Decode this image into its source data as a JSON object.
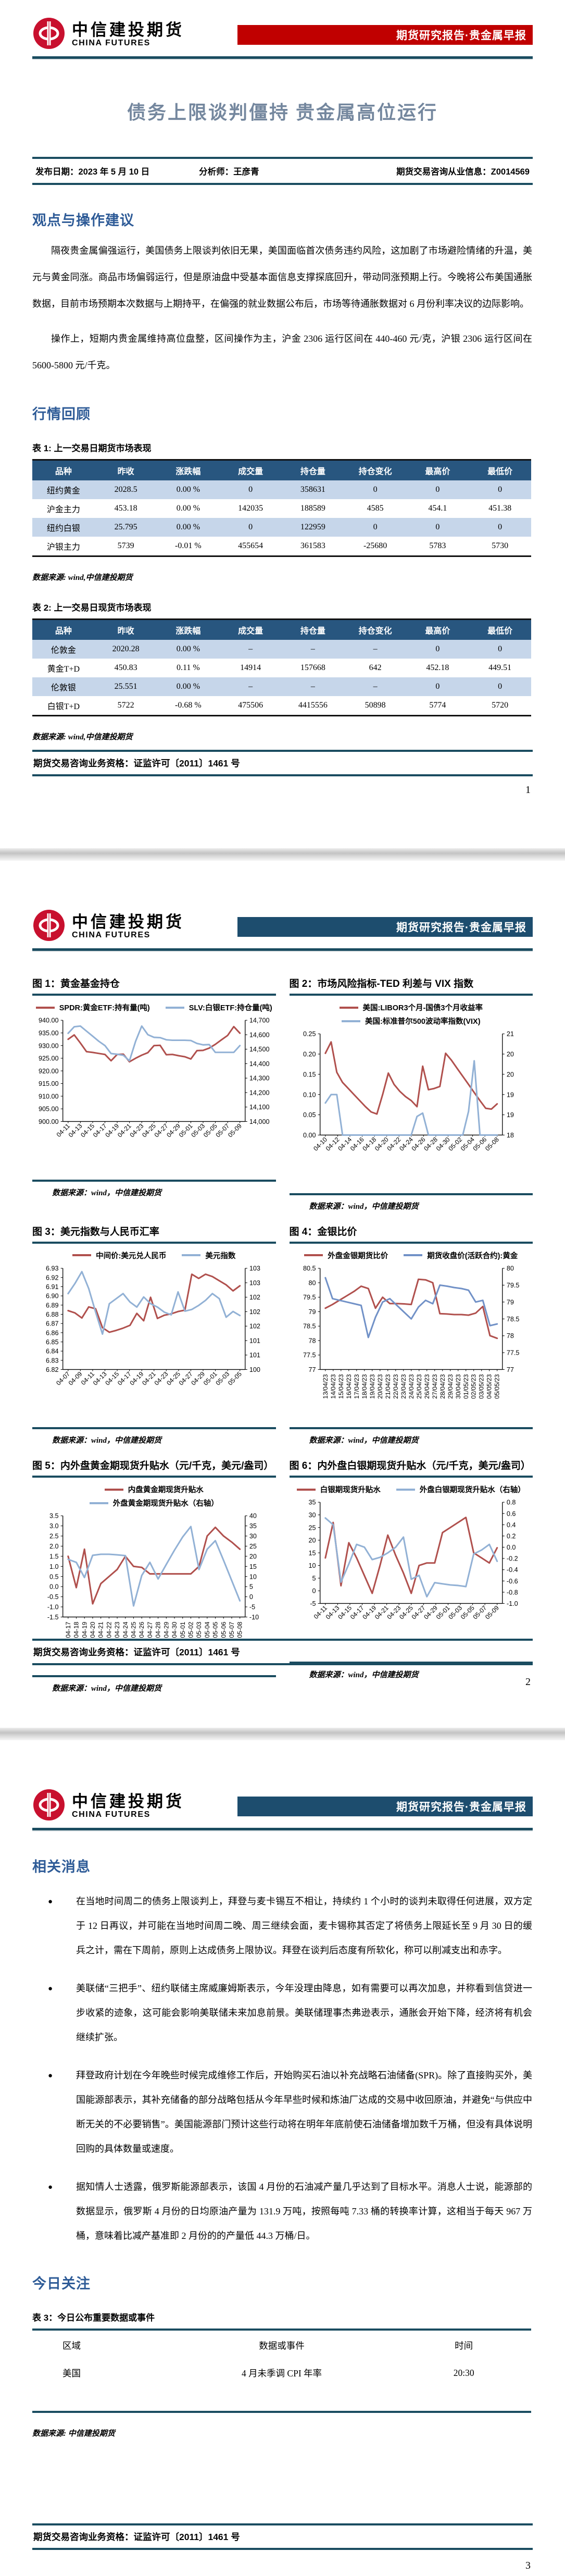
{
  "theme": {
    "teal": "#1a4c60",
    "red_banner": "#c00000",
    "navy_banner": "#1d4d6e",
    "table_header": "#28567f",
    "row_alt": "#c6d6ea",
    "heading": "#2e5b97",
    "title_color": "#74879e",
    "line_red": "#b0504d",
    "line_blue": "#92b1d5"
  },
  "header": {
    "logo_cn": "中信建投期货",
    "logo_en": "CHINA FUTURES",
    "banner": "期货研究报告·贵金属早报"
  },
  "cover": {
    "title": "债务上限谈判僵持 贵金属高位运行",
    "publish": "发布日期：2023 年 5 月 10 日",
    "analyst": "分析师：王彦青",
    "license_info": "期货交易咨询从业信息：Z0014569"
  },
  "sections": {
    "viewpoint": "观点与操作建议",
    "review": "行情回顾",
    "news": "相关消息",
    "today": "今日关注"
  },
  "viewpoint": {
    "para1": "隔夜贵金属偏强运行，美国债务上限谈判依旧无果，美国面临首次债务违约风险，这加剧了市场避险情绪的升温，美元与黄金同涨。商品市场偏弱运行，但是原油盘中受基本面信息支撑探底回升，带动同涨预期上行。今晚将公布美国通胀数据，目前市场预期本次数据与上期持平，在偏强的就业数据公布后，市场等待通胀数据对 6 月份利率决议的边际影响。",
    "para2": "操作上，短期内贵金属维持高位盘整，区间操作为主，沪金 2306 运行区间在 440-460 元/克，沪银 2306 运行区间在 5600-5800 元/千克。"
  },
  "tables": [
    {
      "caption": "表 1: 上一交易日期货市场表现",
      "headers": [
        "品种",
        "昨收",
        "涨跌幅",
        "成交量",
        "持仓量",
        "持仓变化",
        "最高价",
        "最低价"
      ],
      "rows": [
        [
          "纽约黄金",
          "2028.5",
          "0.00 %",
          "0",
          "358631",
          "0",
          "0",
          "0"
        ],
        [
          "沪金主力",
          "453.18",
          "0.00 %",
          "142035",
          "188589",
          "4585",
          "454.1",
          "451.38"
        ],
        [
          "纽约白银",
          "25.795",
          "0.00 %",
          "0",
          "122959",
          "0",
          "0",
          "0"
        ],
        [
          "沪银主力",
          "5739",
          "-0.01 %",
          "455654",
          "361583",
          "-25680",
          "5783",
          "5730"
        ]
      ],
      "source": "数据来源: wind,中信建投期货"
    },
    {
      "caption": "表 2: 上一交易日现货市场表现",
      "headers": [
        "品种",
        "昨收",
        "涨跌幅",
        "成交量",
        "持仓量",
        "持仓变化",
        "最高价",
        "最低价"
      ],
      "rows": [
        [
          "伦敦金",
          "2020.28",
          "0.00 %",
          "–",
          "–",
          "–",
          "0",
          "0"
        ],
        [
          "黄金T+D",
          "450.83",
          "0.11 %",
          "14914",
          "157668",
          "642",
          "452.18",
          "449.51"
        ],
        [
          "伦敦银",
          "25.551",
          "0.00 %",
          "–",
          "–",
          "–",
          "0",
          "0"
        ],
        [
          "白银T+D",
          "5722",
          "-0.68 %",
          "475506",
          "4415556",
          "50898",
          "5774",
          "5720"
        ]
      ],
      "source": "数据来源: wind,中信建投期货"
    },
    {
      "caption": "表 3：今日公布重要数据或事件",
      "headers": [
        "区域",
        "数据或事件",
        "时间"
      ],
      "rows": [
        [
          "美国",
          "4 月未季调 CPI 年率",
          "20:30"
        ]
      ],
      "source": "数据来源: 中信建投期货"
    }
  ],
  "news": {
    "bullets": [
      "在当地时间周二的债务上限谈判上，拜登与麦卡锡互不相让，持续约 1 个小时的谈判未取得任何进展，双方定于 12 日再议，并可能在当地时间周二晚、周三继续会面，麦卡锡称其否定了将债务上限延长至 9 月 30 日的缓兵之计，需在下周前，原则上达成债务上限协议。拜登在谈判后态度有所软化，称可以削减支出和赤字。",
      "美联储“三把手”、纽约联储主席威廉姆斯表示，今年没理由降息，如有需要可以再次加息，并称看到信贷进一步收紧的迹象，这可能会影响美联储未来加息前景。美联储理事杰弗逊表示，通胀会开始下降，经济将有机会继续扩张。",
      "拜登政府计划在今年晚些时候完成维修工作后，开始购买石油以补充战略石油储备(SPR)。除了直接购买外，美国能源部表示，其补充储备的部分战略包括从今年早些时候和炼油厂达成的交易中收回原油，并避免“与供应中断无关的不必要销售”。美国能源部门预计这些行动将在明年年底前使石油储备增加数千万桶，但没有具体说明回购的具体数量或速度。",
      "据知情人士透露，俄罗斯能源部表示，该国 4 月份的石油减产量几乎达到了目标水平。消息人士说，能源部的数据显示，俄罗斯 4 月份的日均原油产量为 131.9 万吨，按照每吨 7.33 桶的转换率计算，这相当于每天 967 万桶，意味着比减产基准即 2 月份的的产量低 44.3 万桶/日。"
    ]
  },
  "footer": {
    "license": "期货交易咨询业务资格：证监许可〔2011〕1461 号",
    "pages": [
      "1",
      "2",
      "3"
    ]
  },
  "chart_source": "数据来源：wind，中信建投期货",
  "chart_data": [
    {
      "type": "line",
      "title": "图 1：黄金基金持仓",
      "legend_stacked": false,
      "legend": [
        {
          "label": "SPDR:黄金ETF:持有量(吨)",
          "color": "#b0504d"
        },
        {
          "label": "SLV:白银ETF:持仓量(吨)",
          "color": "#92b1d5"
        }
      ],
      "left_axis": {
        "ticks": [
          "940.00",
          "935.00",
          "930.00",
          "925.00",
          "920.00",
          "915.00",
          "910.00",
          "905.00",
          "900.00"
        ],
        "min": 900,
        "max": 940
      },
      "right_axis": {
        "ticks": [
          "14,700",
          "14,600",
          "14,500",
          "14,400",
          "14,300",
          "14,200",
          "14,100",
          "14,000"
        ],
        "min": 14000,
        "max": 14700
      },
      "x_labels": [
        "04-11",
        "04-13",
        "04-15",
        "04-17",
        "04-19",
        "04-21",
        "04-23",
        "04-25",
        "04-27",
        "04-29",
        "05-01",
        "05-03",
        "05-05",
        "05-07",
        "05-09"
      ],
      "x_rotate": -45,
      "series": [
        {
          "name": "SPDR:黄金ETF:持有量(吨)",
          "axis": "left",
          "color": "#b0504d",
          "values": [
            932.5,
            934.2,
            931.0,
            927.6,
            927.3,
            926.9,
            926.5,
            924.0,
            926.5,
            926.6,
            923.6,
            925.0,
            926.2,
            927.2,
            930.0,
            930.1,
            926.4,
            926.5,
            926.0,
            925.6,
            924.7,
            928.0,
            928.1,
            929.0,
            930.5,
            932.3,
            934.0,
            937.5,
            934.9
          ]
        },
        {
          "name": "SLV:白银ETF:持仓量(吨)",
          "axis": "right",
          "color": "#92b1d5",
          "values": [
            14610,
            14655,
            14660,
            14625,
            14590,
            14555,
            14525,
            14470,
            14465,
            14458,
            14420,
            14555,
            14660,
            14600,
            14582,
            14580,
            14565,
            14562,
            14562,
            14562,
            14560,
            14540,
            14530,
            14532,
            14478,
            14478,
            14478,
            14478,
            14525
          ]
        }
      ]
    },
    {
      "type": "line",
      "title": "图 2：市场风险指标-TED 利差与 VIX 指数",
      "legend_stacked": true,
      "legend": [
        {
          "label": "美国:LIBOR3个月-国债3个月收益率",
          "color": "#b0504d"
        },
        {
          "label": "美国:标准普尔500波动率指数(VIX)",
          "color": "#92b1d5"
        }
      ],
      "left_axis": {
        "ticks": [
          "0.25",
          "0.20",
          "0.15",
          "0.10",
          "0.05",
          "0.00"
        ],
        "min": 0,
        "max": 0.25
      },
      "right_axis": {
        "ticks": [
          "21",
          "20",
          "20",
          "19",
          "19",
          "18"
        ],
        "min": 18,
        "max": 21
      },
      "x_labels": [
        "04-10",
        "04-12",
        "04-14",
        "04-16",
        "04-18",
        "04-20",
        "04-22",
        "04-24",
        "04-26",
        "04-28",
        "04-30",
        "05-02",
        "05-04",
        "05-06",
        "05-08"
      ],
      "x_rotate": -45,
      "series": [
        {
          "name": "美国:LIBOR3个月-国债3个月收益率",
          "axis": "left",
          "color": "#b0504d",
          "values": [
            0.202,
            0.23,
            0.155,
            0.13,
            0.115,
            0.1,
            0.085,
            0.07,
            0.057,
            0.052,
            0.1,
            0.153,
            0.125,
            0.108,
            0.095,
            0.085,
            0.07,
            0.17,
            0.112,
            0.115,
            0.12,
            0.202,
            0.185,
            0.165,
            0.145,
            0.125,
            0.105,
            0.085,
            0.066,
            0.064,
            0.077
          ]
        },
        {
          "name": "美国:标准普尔500波动率指数(VIX)",
          "axis": "right",
          "color": "#92b1d5",
          "values": [
            18.95,
            19.2,
            19.2,
            18.0,
            18.0,
            18.0,
            18.0,
            18.0,
            18.0,
            18.0,
            18.0,
            18.0,
            18.0,
            18.0,
            18.0,
            18.0,
            18.55,
            18.65,
            18.0,
            18.0,
            18.0,
            18.0,
            18.0,
            18.0,
            18.0,
            18.7,
            20.2,
            18.0,
            18.0,
            18.0,
            18.0
          ]
        }
      ]
    },
    {
      "type": "line",
      "title": "图 3：美元指数与人民币汇率",
      "legend_stacked": false,
      "legend": [
        {
          "label": "中间价:美元兑人民币",
          "color": "#b0504d"
        },
        {
          "label": "美元指数",
          "color": "#92b1d5"
        }
      ],
      "left_axis": {
        "ticks": [
          "6.93",
          "6.92",
          "6.91",
          "6.90",
          "6.89",
          "6.88",
          "6.87",
          "6.86",
          "6.85",
          "6.84",
          "6.83",
          "6.82"
        ],
        "min": 6.82,
        "max": 6.93
      },
      "right_axis": {
        "ticks": [
          "103",
          "103",
          "102",
          "102",
          "102",
          "101",
          "101",
          "100"
        ],
        "min": 100,
        "max": 103
      },
      "x_labels": [
        "04-07",
        "04-09",
        "04-11",
        "04-13",
        "04-15",
        "04-17",
        "04-19",
        "04-21",
        "04-23",
        "04-25",
        "04-27",
        "04-29",
        "05-01",
        "05-03",
        "05-05"
      ],
      "x_rotate": -45,
      "series": [
        {
          "name": "中间价:美元兑人民币",
          "axis": "left",
          "color": "#b0504d",
          "values": [
            6.884,
            6.8815,
            6.876,
            6.888,
            6.886,
            6.8655,
            6.8605,
            6.8625,
            6.865,
            6.868,
            6.881,
            6.873,
            6.8985,
            6.8755,
            6.879,
            6.8805,
            6.883,
            6.8845,
            6.9235,
            6.919,
            6.9235,
            6.921,
            6.9165,
            6.912,
            6.9055,
            6.911
          ]
        },
        {
          "name": "美元指数",
          "axis": "right",
          "color": "#92b1d5",
          "values": [
            102.25,
            102.55,
            102.9,
            102.4,
            101.7,
            101.05,
            101.95,
            102.1,
            102.25,
            102.0,
            101.85,
            102.15,
            101.95,
            101.85,
            101.7,
            101.62,
            102.3,
            101.73,
            101.78,
            101.9,
            102.05,
            102.25,
            102.1,
            101.55,
            101.72,
            101.6
          ]
        }
      ]
    },
    {
      "type": "line",
      "title": "图 4：金银比价",
      "legend_stacked": false,
      "legend": [
        {
          "label": "外盘金银期货比价",
          "color": "#b0504d"
        },
        {
          "label": "期货收盘价(活跃合约):黄金",
          "color": "#7191c7"
        }
      ],
      "left_axis": {
        "ticks": [
          "80.5",
          "80",
          "79.5",
          "79",
          "78.5",
          "78",
          "77.5",
          "77"
        ],
        "min": 77,
        "max": 80.5
      },
      "right_axis": {
        "ticks": [
          "80",
          "79.5",
          "79",
          "78.5",
          "78",
          "77.5",
          "77"
        ],
        "min": 77,
        "max": 80
      },
      "x_labels": [
        "13/04/23",
        "14/04/23",
        "15/04/23",
        "16/04/23",
        "17/04/23",
        "18/04/23",
        "19/04/23",
        "20/04/23",
        "21/04/23",
        "22/04/23",
        "23/04/23",
        "24/04/23",
        "25/04/23",
        "26/04/23",
        "27/04/23",
        "28/04/23",
        "29/04/23",
        "30/04/23",
        "01/05/23",
        "02/05/23",
        "03/05/23",
        "04/05/23",
        "05/05/23"
      ],
      "x_rotate": -90,
      "series": [
        {
          "name": "外盘金银期货比价",
          "axis": "left",
          "color": "#b0504d",
          "values": [
            79.12,
            79.25,
            79.4,
            79.55,
            79.7,
            79.88,
            79.8,
            79.12,
            79.5,
            79.28,
            79.28,
            79.27,
            79.25,
            80.12,
            80.1,
            80.0,
            78.93,
            78.92,
            78.9,
            78.9,
            78.88,
            78.95,
            79.18,
            78.17,
            78.08
          ]
        },
        {
          "name": "期货收盘价(活跃合约):黄金",
          "axis": "right",
          "color": "#7191c7",
          "values": [
            79.72,
            79.1,
            79.05,
            79.0,
            78.95,
            78.9,
            77.95,
            78.55,
            79.0,
            79.1,
            78.9,
            78.7,
            78.5,
            78.85,
            79.05,
            78.95,
            79.5,
            79.47,
            79.43,
            79.4,
            79.35,
            79.0,
            79.05,
            78.3,
            78.35
          ]
        }
      ]
    },
    {
      "type": "line",
      "title": "图 5：内外盘黄金期现货升贴水（元/千克，美元/盎司）",
      "legend_stacked": false,
      "legend": [
        {
          "label": "内盘黄金期现货升贴水",
          "color": "#b0504d"
        },
        {
          "label": "外盘黄金期现货升贴水（右轴）",
          "color": "#92b1d5"
        }
      ],
      "left_axis": {
        "ticks": [
          "3.5",
          "3.0",
          "2.5",
          "2.0",
          "1.5",
          "1.0",
          "0.5",
          "0.0",
          "-0.5",
          "-1.0",
          "-1.5"
        ],
        "min": -1.5,
        "max": 3.5
      },
      "right_axis": {
        "ticks": [
          "40",
          "35",
          "30",
          "25",
          "20",
          "15",
          "10",
          "5",
          "0",
          "-5",
          "-10"
        ],
        "min": -10,
        "max": 40
      },
      "x_labels": [
        "04-17",
        "04-18",
        "04-19",
        "04-20",
        "04-21",
        "04-22",
        "04-23",
        "04-24",
        "04-25",
        "04-26",
        "04-27",
        "04-28",
        "04-29",
        "04-30",
        "05-01",
        "05-02",
        "05-03",
        "05-04",
        "05-05",
        "05-06",
        "05-07",
        "05-08"
      ],
      "x_rotate": -90,
      "series": [
        {
          "name": "内盘黄金期现货升贴水",
          "axis": "left",
          "color": "#b0504d",
          "values": [
            1.5,
            -0.05,
            1.85,
            -0.85,
            0.15,
            0.5,
            0.85,
            1.5,
            1.0,
            0.95,
            0.63,
            0.63,
            0.63,
            0.63,
            0.63,
            0.63,
            1.0,
            2.5,
            2.93,
            2.5,
            2.2,
            1.85
          ]
        },
        {
          "name": "外盘黄金期现货升贴水（右轴）",
          "axis": "right",
          "color": "#92b1d5",
          "values": [
            18.5,
            17,
            9.5,
            20.5,
            21,
            21,
            20.7,
            20.3,
            -4.5,
            10.5,
            17,
            8.8,
            16,
            23,
            29.5,
            34.7,
            13.5,
            23.5,
            27.7,
            18,
            8,
            -2
          ]
        }
      ]
    },
    {
      "type": "line",
      "title": "图 6：内外盘白银期现货升贴水（元/千克，美元/盎司）",
      "legend_stacked": false,
      "legend": [
        {
          "label": "白银期现货升贴水",
          "color": "#b0504d"
        },
        {
          "label": "外盘白银期现货升贴水（右轴）",
          "color": "#92b1d5"
        }
      ],
      "left_axis": {
        "ticks": [
          "35",
          "30",
          "25",
          "20",
          "15",
          "10",
          "5",
          "0",
          "-5"
        ],
        "min": -5,
        "max": 35
      },
      "right_axis": {
        "ticks": [
          "0.8",
          "0.6",
          "0.4",
          "0.2",
          "0.0",
          "-0.2",
          "-0.4",
          "-0.6",
          "-0.8",
          "-1.0"
        ],
        "min": -1.0,
        "max": 0.8
      },
      "x_labels": [
        "04-11",
        "04-13",
        "04-15",
        "04-17",
        "04-19",
        "04-21",
        "04-23",
        "04-25",
        "04-27",
        "04-29",
        "05-01",
        "05-03",
        "05-05",
        "05-07",
        "05-09"
      ],
      "x_rotate": -45,
      "series": [
        {
          "name": "白银期现货升贴水",
          "axis": "left",
          "color": "#b0504d",
          "values": [
            13,
            27,
            2,
            19,
            13,
            6,
            -1,
            10,
            22,
            14,
            7,
            -1,
            10,
            11,
            11,
            23,
            25,
            27,
            29,
            15,
            13,
            11,
            17
          ]
        },
        {
          "name": "外盘白银期现货升贴水（右轴）",
          "axis": "right",
          "color": "#92b1d5",
          "values": [
            0.52,
            0.4,
            -0.62,
            -0.3,
            0.05,
            0.0,
            -0.22,
            -0.18,
            -0.1,
            0.0,
            0.18,
            -0.57,
            -0.5,
            -0.88,
            -0.63,
            -0.65,
            -0.67,
            -0.68,
            -0.7,
            -0.12,
            -0.05,
            0.05,
            -0.25
          ]
        }
      ]
    }
  ]
}
